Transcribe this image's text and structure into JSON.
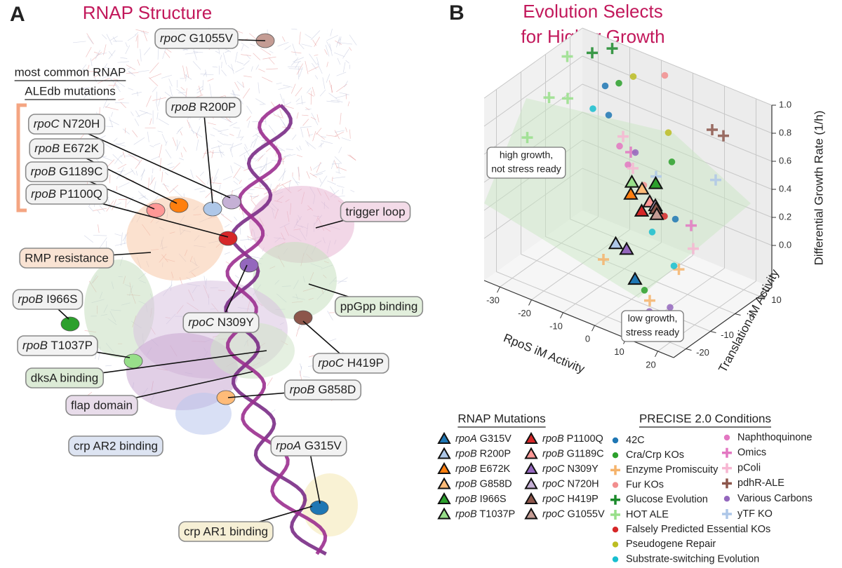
{
  "panel_a": {
    "label": "A",
    "title": "RNAP Structure",
    "heading": [
      "most common RNAP",
      "ALEdb mutations"
    ],
    "labels": [
      {
        "text": "rpoC G1055V"
      },
      {
        "text": "rpoB R200P"
      },
      {
        "text": "rpoC N720H"
      },
      {
        "text": "rpoB E672K"
      },
      {
        "text": "rpoB G1189C"
      },
      {
        "text": "rpoB P1100Q"
      },
      {
        "text": "trigger loop"
      },
      {
        "text": "RMP resistance"
      },
      {
        "text": "rpoB I966S"
      },
      {
        "text": "ppGpp binding"
      },
      {
        "text": "rpoC N309Y"
      },
      {
        "text": "rpoB T1037P"
      },
      {
        "text": "rpoC H419P"
      },
      {
        "text": "dksA binding"
      },
      {
        "text": "flap domain"
      },
      {
        "text": "rpoB G858D"
      },
      {
        "text": "crp AR2 binding"
      },
      {
        "text": "rpoA G315V"
      },
      {
        "text": "crp AR1 binding"
      }
    ]
  },
  "chart_data": {
    "type": "scatter3d",
    "label": "B",
    "title_lines": [
      "Evolution Selects",
      "for Higher Growth"
    ],
    "xlabel": "RpoS iM Activity",
    "ylabel": "Translation iM Activity",
    "zlabel": "Differential Growth Rate (1/h)",
    "xlim": [
      -35,
      25
    ],
    "ylim": [
      -25,
      15
    ],
    "zlim": [
      -0.3,
      1.0
    ],
    "xticks": [
      -30,
      -20,
      -10,
      0,
      10,
      20
    ],
    "yticks": [
      -20,
      -10,
      0,
      10
    ],
    "zticks": [
      {
        "value": 0,
        "label": "0.0"
      },
      {
        "value": 0.2,
        "label": "0.2"
      },
      {
        "value": 0.4,
        "label": "0.4"
      },
      {
        "value": 0.6,
        "label": "0.6"
      },
      {
        "value": 0.8,
        "label": "0.8"
      },
      {
        "value": 1,
        "label": "1.0"
      }
    ],
    "grid": true,
    "annotations": [
      {
        "lines": [
          "high growth,",
          "not stress ready"
        ]
      },
      {
        "lines": [
          "low growth,",
          "stress ready"
        ]
      }
    ],
    "legend_titles": [
      "RNAP Mutations",
      "PRECISE 2.0 Conditions"
    ],
    "series": [
      {
        "name": "rpoA G315V",
        "color": "#1f77b4",
        "marker": "triangle",
        "x": [
          5
        ],
        "y": [
          -15
        ],
        "z": [
          -0.05
        ]
      },
      {
        "name": "rpoB R200P",
        "color": "#aec7e8",
        "marker": "triangle",
        "x": [
          -5
        ],
        "y": [
          -10
        ],
        "z": [
          0.05
        ]
      },
      {
        "name": "rpoB E672K",
        "color": "#ff7f0e",
        "marker": "triangle",
        "x": [
          -8
        ],
        "y": [
          0
        ],
        "z": [
          0.25
        ]
      },
      {
        "name": "rpoB G858D",
        "color": "#ffbb78",
        "marker": "triangle",
        "x": [
          -6
        ],
        "y": [
          2
        ],
        "z": [
          0.28
        ]
      },
      {
        "name": "rpoB I966S",
        "color": "#2ca02c",
        "marker": "triangle",
        "x": [
          -4
        ],
        "y": [
          5
        ],
        "z": [
          0.3
        ]
      },
      {
        "name": "rpoB T1037P",
        "color": "#98df8a",
        "marker": "triangle",
        "x": [
          -10
        ],
        "y": [
          3
        ],
        "z": [
          0.28
        ]
      },
      {
        "name": "rpoB P1100Q",
        "color": "#d62728",
        "marker": "triangle",
        "x": [
          -3
        ],
        "y": [
          -2
        ],
        "z": [
          0.2
        ]
      },
      {
        "name": "rpoB G1189C",
        "color": "#ff9896",
        "marker": "triangle",
        "x": [
          -2
        ],
        "y": [
          0
        ],
        "z": [
          0.25
        ]
      },
      {
        "name": "rpoC N309Y",
        "color": "#9467bd",
        "marker": "triangle",
        "x": [
          0
        ],
        "y": [
          -12
        ],
        "z": [
          0.08
        ]
      },
      {
        "name": "rpoC N720H",
        "color": "#c5b0d5",
        "marker": "triangle",
        "x": [
          -1
        ],
        "y": [
          1
        ],
        "z": [
          0.22
        ]
      },
      {
        "name": "rpoC H419P",
        "color": "#8c564b",
        "marker": "triangle",
        "x": [
          0
        ],
        "y": [
          0
        ],
        "z": [
          0.22
        ]
      },
      {
        "name": "rpoC G1055V",
        "color": "#c49c94",
        "marker": "triangle",
        "x": [
          1
        ],
        "y": [
          -1
        ],
        "z": [
          0.2
        ]
      },
      {
        "name": "42C",
        "color": "#1f77b4",
        "marker": "circle",
        "x": [
          -20,
          -15,
          10
        ],
        "y": [
          5,
          0,
          -5
        ],
        "z": [
          0.85,
          0.75,
          0.3
        ]
      },
      {
        "name": "Cra/Crp KOs",
        "color": "#2ca02c",
        "marker": "circle",
        "x": [
          -18,
          5,
          8
        ],
        "y": [
          8,
          0,
          -15
        ],
        "z": [
          0.85,
          0.6,
          -0.1
        ]
      },
      {
        "name": "Enzyme Promiscuity",
        "color": "#f5b36b",
        "marker": "plus",
        "x": [
          -5,
          15,
          12
        ],
        "y": [
          -15,
          -10,
          -18
        ],
        "z": [
          0.0,
          0.05,
          -0.1
        ]
      },
      {
        "name": "Fur KOs",
        "color": "#f28e8e",
        "marker": "circle",
        "x": [
          -5,
          0
        ],
        "y": [
          10,
          -5
        ],
        "z": [
          1.0,
          0.45
        ]
      },
      {
        "name": "Glucose Evolution",
        "color": "#1b8a2b",
        "marker": "plus",
        "x": [
          -28,
          -24
        ],
        "y": [
          10,
          13
        ],
        "z": [
          0.95,
          0.98
        ]
      },
      {
        "name": "HOT ALE",
        "color": "#98df8a",
        "marker": "plus",
        "x": [
          -32,
          -30,
          -33,
          -28
        ],
        "y": [
          5,
          -5,
          -10,
          0
        ],
        "z": [
          0.95,
          0.8,
          0.55,
          0.75
        ]
      },
      {
        "name": "Falsely Predicted Essential KOs",
        "color": "#d62728",
        "marker": "circle",
        "x": [
          -5,
          5
        ],
        "y": [
          0,
          -3
        ],
        "z": [
          0.3,
          0.25
        ]
      },
      {
        "name": "Pseudogene Repair",
        "color": "#bcbd22",
        "marker": "circle",
        "x": [
          -15,
          0
        ],
        "y": [
          10,
          5
        ],
        "z": [
          0.9,
          0.7
        ]
      },
      {
        "name": "Substrate-switching Evolution",
        "color": "#17becf",
        "marker": "circle",
        "x": [
          -20,
          5,
          15
        ],
        "y": [
          0,
          -8,
          -12
        ],
        "z": [
          0.75,
          0.2,
          0.1
        ]
      },
      {
        "name": "Naphthoquinone",
        "color": "#e377c2",
        "marker": "circle",
        "x": [
          -10,
          -5
        ],
        "y": [
          -2,
          -5
        ],
        "z": [
          0.6,
          0.55
        ]
      },
      {
        "name": "Omics",
        "color": "#e377c2",
        "marker": "plus",
        "x": [
          -8,
          15
        ],
        "y": [
          0,
          -5
        ],
        "z": [
          0.55,
          0.3
        ]
      },
      {
        "name": "pColi",
        "color": "#f7b6d2",
        "marker": "plus",
        "x": [
          -12,
          18,
          -5
        ],
        "y": [
          2,
          -8,
          -3
        ],
        "z": [
          0.6,
          0.2,
          0.5
        ]
      },
      {
        "name": "pdhR-ALE",
        "color": "#8c564b",
        "marker": "plus",
        "x": [
          10,
          12
        ],
        "y": [
          10,
          12
        ],
        "z": [
          0.75,
          0.7
        ]
      },
      {
        "name": "Various Carbons",
        "color": "#9467bd",
        "marker": "circle",
        "x": [
          -5,
          15,
          20
        ],
        "y": [
          -2,
          -22,
          -20
        ],
        "z": [
          0.6,
          -0.1,
          -0.05
        ]
      },
      {
        "name": "yTF KO",
        "color": "#aec7e8",
        "marker": "plus",
        "x": [
          0,
          15
        ],
        "y": [
          0,
          5
        ],
        "z": [
          0.45,
          0.5
        ]
      }
    ]
  }
}
